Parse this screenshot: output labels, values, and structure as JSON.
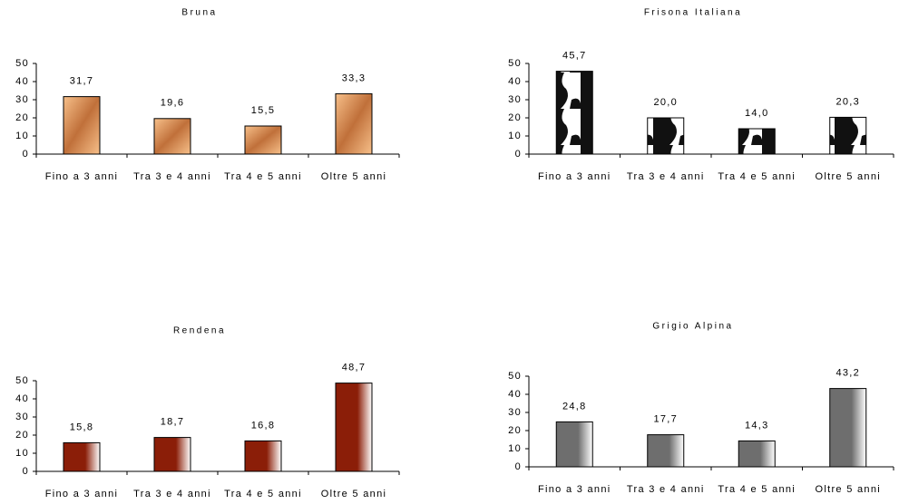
{
  "chart_data": [
    {
      "type": "bar",
      "title": "Bruna",
      "categories": [
        "Fino a 3 anni",
        "Tra 3 e 4 anni",
        "Tra 4 e 5 anni",
        "Oltre 5 anni"
      ],
      "values": [
        31.7,
        19.6,
        15.5,
        33.3
      ],
      "value_labels": [
        "31,7",
        "19,6",
        "15,5",
        "33,3"
      ],
      "color": "#c0703a",
      "ylim": [
        0,
        50
      ],
      "yticks": [
        0,
        10,
        20,
        30,
        40,
        50
      ]
    },
    {
      "type": "bar",
      "title": "Frisona Italiana",
      "categories": [
        "Fino a 3 anni",
        "Tra 3 e 4 anni",
        "Tra 4 e 5 anni",
        "Oltre 5 anni"
      ],
      "values": [
        45.7,
        20.0,
        14.0,
        20.3
      ],
      "value_labels": [
        "45,7",
        "20,0",
        "14,0",
        "20,3"
      ],
      "color": "#111111",
      "ylim": [
        0,
        50
      ],
      "yticks": [
        0,
        10,
        20,
        30,
        40,
        50
      ]
    },
    {
      "type": "bar",
      "title": "Rendena",
      "categories": [
        "Fino a 3 anni",
        "Tra 3 e 4 anni",
        "Tra 4 e 5 anni",
        "Oltre 5 anni"
      ],
      "values": [
        15.8,
        18.7,
        16.8,
        48.7
      ],
      "value_labels": [
        "15,8",
        "18,7",
        "16,8",
        "48,7"
      ],
      "color": "#8b1e08",
      "ylim": [
        0,
        50
      ],
      "yticks": [
        0,
        10,
        20,
        30,
        40,
        50
      ]
    },
    {
      "type": "bar",
      "title": "Grigio Alpina",
      "categories": [
        "Fino a 3 anni",
        "Tra 3 e 4 anni",
        "Tra 4 e 5 anni",
        "Oltre 5 anni"
      ],
      "values": [
        24.8,
        17.7,
        14.3,
        43.2
      ],
      "value_labels": [
        "24,8",
        "17,7",
        "14,3",
        "43,2"
      ],
      "color": "#6e6e6e",
      "ylim": [
        0,
        50
      ],
      "yticks": [
        0,
        10,
        20,
        30,
        40,
        50
      ]
    }
  ]
}
